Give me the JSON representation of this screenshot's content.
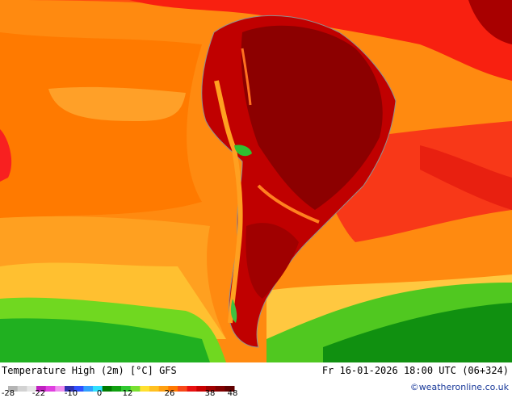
{
  "header": {
    "title": "Temperature High (2m) [°C] GFS",
    "timestamp": "Fr 16-01-2026 18:00 UTC (06+324)",
    "credit": "©weatheronline.co.uk"
  },
  "legend": {
    "ticks": [
      "-28",
      "-22",
      "-10",
      "0",
      "12",
      "26",
      "38",
      "48"
    ],
    "colors": [
      "#b4b4b4",
      "#d2d2d2",
      "#e6e6e6",
      "#c020c0",
      "#e040e0",
      "#f090f0",
      "#3030b0",
      "#3050ff",
      "#30a0ff",
      "#30e0ff",
      "#007a00",
      "#10a010",
      "#30c830",
      "#78e030",
      "#ffe030",
      "#ffc020",
      "#ffa010",
      "#ff7800",
      "#f84818",
      "#e81010",
      "#c80000",
      "#a00000",
      "#800000",
      "#600000"
    ]
  },
  "map": {
    "colors": {
      "ocean_hot": "#ff4010",
      "ocean_warm": "#ff7a00",
      "ocean_mild": "#ffa020",
      "ocean_cool": "#ffc040",
      "ocean_cold": "#30c030",
      "land_hot": "#a00000",
      "land_very_hot": "#800000",
      "coast": "#a0a0a0"
    }
  }
}
